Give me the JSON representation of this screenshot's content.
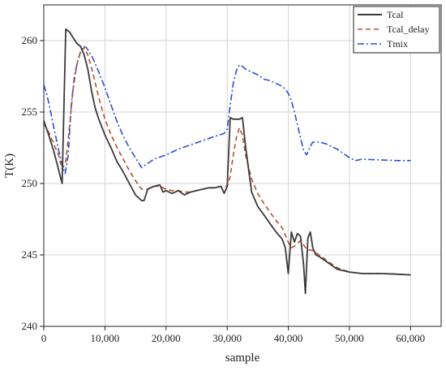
{
  "chart_data": {
    "type": "line",
    "title": "",
    "xlabel": "sample",
    "ylabel": "T(K)",
    "xlim": [
      0,
      65000
    ],
    "ylim": [
      240,
      262.5
    ],
    "xticks": [
      0,
      10000,
      20000,
      30000,
      40000,
      50000,
      60000
    ],
    "xtick_labels": [
      "0",
      "10,000",
      "20,000",
      "30,000",
      "40,000",
      "50,000",
      "60,000"
    ],
    "yticks": [
      240,
      245,
      250,
      255,
      260
    ],
    "ytick_labels": [
      "240",
      "245",
      "250",
      "255",
      "260"
    ],
    "grid": true,
    "legend_position": "top-right",
    "series": [
      {
        "name": "Tcal",
        "color": "#3a3a3a",
        "style": "solid",
        "x": [
          0,
          800,
          1600,
          2400,
          3000,
          3300,
          3600,
          4200,
          4800,
          5400,
          6000,
          6600,
          7200,
          7800,
          8400,
          9000,
          10000,
          11000,
          12000,
          13000,
          14000,
          15000,
          16000,
          16400,
          17000,
          18000,
          19000,
          19500,
          20000,
          21000,
          22000,
          23000,
          24000,
          25000,
          26000,
          27000,
          28000,
          29000,
          29500,
          30000,
          30500,
          31000,
          31500,
          32000,
          32500,
          33000,
          34000,
          35000,
          36000,
          37000,
          38000,
          39000,
          39500,
          40000,
          40500,
          41000,
          41500,
          42000,
          42500,
          42800,
          43200,
          43600,
          44000,
          44500,
          45000,
          46000,
          47000,
          48000,
          50000,
          52000,
          55000,
          58000,
          60000
        ],
        "y": [
          254.4,
          253.4,
          252.3,
          251.0,
          250.0,
          255.5,
          260.8,
          260.6,
          260.2,
          259.8,
          259.6,
          259.0,
          258.0,
          256.5,
          255.3,
          254.5,
          253.4,
          252.5,
          251.5,
          250.8,
          250.0,
          249.2,
          248.8,
          248.8,
          249.6,
          249.8,
          249.9,
          249.4,
          249.5,
          249.3,
          249.5,
          249.2,
          249.4,
          249.5,
          249.6,
          249.7,
          249.7,
          249.8,
          249.3,
          249.8,
          254.6,
          254.5,
          254.5,
          254.5,
          254.6,
          252.6,
          249.4,
          248.4,
          247.8,
          247.2,
          246.6,
          246.1,
          245.5,
          243.7,
          246.6,
          245.9,
          246.5,
          246.3,
          244.3,
          242.3,
          246.2,
          246.6,
          245.5,
          245.0,
          244.9,
          244.6,
          244.3,
          244.0,
          243.8,
          243.7,
          243.7,
          243.65,
          243.6
        ]
      },
      {
        "name": "Tcal_delay",
        "color": "#b5502a",
        "style": "dashed",
        "x": [
          0,
          800,
          1600,
          2400,
          3000,
          3600,
          4200,
          4800,
          5400,
          6000,
          6600,
          7200,
          8000,
          9000,
          10000,
          11000,
          12000,
          13000,
          14000,
          15000,
          16000,
          17000,
          18000,
          19000,
          20000,
          21000,
          22000,
          23000,
          24000,
          25000,
          26000,
          27000,
          28000,
          29000,
          30000,
          30500,
          31000,
          31500,
          32000,
          32500,
          33000,
          34000,
          35000,
          36000,
          37000,
          38000,
          39000,
          40000,
          40500,
          41000,
          42000,
          43000,
          44000,
          45000,
          46000,
          47000,
          48000,
          50000,
          52000,
          55000,
          58000,
          60000
        ],
        "y": [
          254.2,
          253.6,
          252.8,
          252.0,
          251.0,
          251.5,
          254.0,
          256.6,
          258.3,
          259.2,
          259.5,
          259.0,
          257.8,
          256.0,
          254.5,
          253.4,
          252.5,
          251.7,
          250.9,
          250.2,
          249.6,
          249.6,
          249.8,
          249.8,
          249.6,
          249.5,
          249.5,
          249.4,
          249.4,
          249.5,
          249.6,
          249.7,
          249.7,
          249.8,
          249.8,
          250.5,
          252.0,
          253.2,
          253.9,
          253.4,
          252.0,
          250.3,
          249.3,
          248.6,
          248.0,
          247.4,
          246.9,
          245.9,
          245.5,
          245.6,
          246.0,
          245.4,
          245.3,
          245.0,
          244.7,
          244.4,
          244.1,
          243.8,
          243.7,
          243.7,
          243.65,
          243.6
        ]
      },
      {
        "name": "Tmix",
        "color": "#2c4fd3",
        "style": "dashdot",
        "x": [
          0,
          500,
          1000,
          1500,
          2000,
          2500,
          3000,
          3500,
          4000,
          4500,
          5000,
          5500,
          6000,
          6500,
          7000,
          8000,
          9000,
          10000,
          11000,
          12000,
          13000,
          14000,
          15000,
          16000,
          17000,
          18000,
          20000,
          22000,
          24000,
          26000,
          28000,
          29500,
          30000,
          30500,
          31000,
          31500,
          32000,
          32500,
          33000,
          34000,
          35000,
          36000,
          37000,
          38000,
          39000,
          39500,
          40000,
          40500,
          41000,
          41500,
          42000,
          42500,
          43000,
          43500,
          44000,
          45000,
          46000,
          47000,
          48000,
          49000,
          50000,
          51000,
          52000,
          55000,
          58000,
          60000
        ],
        "y": [
          256.9,
          256.2,
          255.3,
          254.2,
          253.2,
          252.2,
          251.3,
          250.7,
          252.0,
          255.5,
          257.5,
          258.5,
          259.2,
          259.6,
          259.5,
          258.8,
          257.8,
          256.7,
          255.5,
          254.3,
          253.3,
          252.5,
          251.8,
          251.1,
          251.4,
          251.7,
          252.0,
          252.4,
          252.7,
          253.0,
          253.3,
          253.5,
          253.8,
          255.5,
          257.0,
          257.9,
          258.3,
          258.2,
          258.0,
          257.8,
          257.6,
          257.3,
          257.2,
          257.0,
          256.8,
          256.6,
          256.3,
          255.8,
          255.0,
          254.1,
          253.2,
          252.3,
          252.0,
          252.5,
          252.9,
          252.9,
          252.8,
          252.6,
          252.4,
          252.1,
          251.8,
          251.6,
          251.7,
          251.65,
          251.6,
          251.6
        ]
      }
    ]
  }
}
